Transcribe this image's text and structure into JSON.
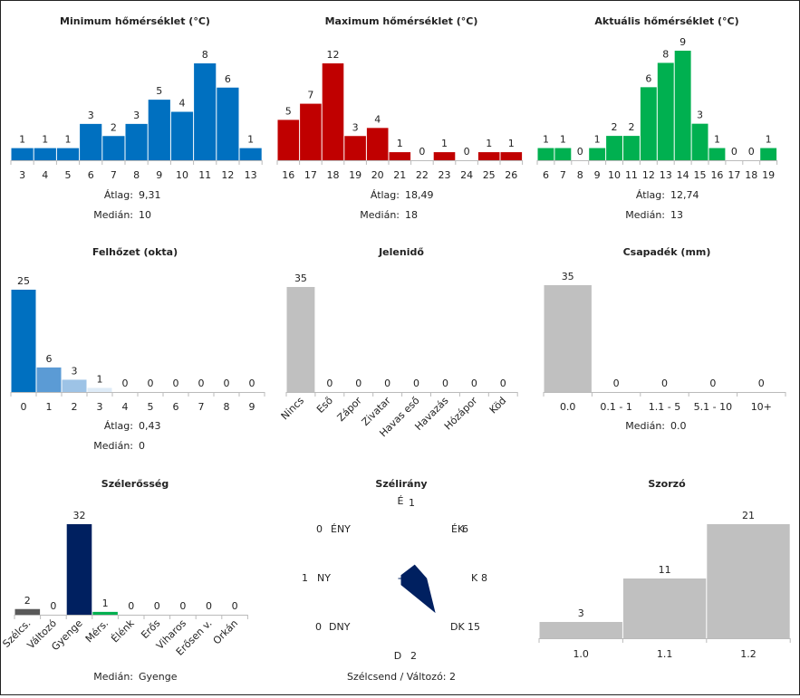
{
  "chart_data": [
    {
      "id": "min_temp",
      "type": "bar",
      "title": "Minimum hőmérséklet (°C)",
      "categories": [
        "3",
        "4",
        "5",
        "6",
        "7",
        "8",
        "9",
        "10",
        "11",
        "12",
        "13"
      ],
      "values": [
        1,
        1,
        1,
        3,
        2,
        3,
        5,
        4,
        8,
        6,
        1
      ],
      "colors": [
        "#0070c0"
      ],
      "ylim": [
        0,
        8
      ],
      "stats": [
        {
          "label": "Átlag:",
          "value": "9,31"
        },
        {
          "label": "Medián:",
          "value": "10"
        }
      ]
    },
    {
      "id": "max_temp",
      "type": "bar",
      "title": "Maximum hőmérséklet (°C)",
      "categories": [
        "16",
        "17",
        "18",
        "19",
        "20",
        "21",
        "22",
        "23",
        "24",
        "25",
        "26"
      ],
      "values": [
        5,
        7,
        12,
        3,
        4,
        1,
        0,
        1,
        0,
        1,
        1
      ],
      "colors": [
        "#c00000"
      ],
      "ylim": [
        0,
        12
      ],
      "stats": [
        {
          "label": "Átlag:",
          "value": "18,49"
        },
        {
          "label": "Medián:",
          "value": "18"
        }
      ]
    },
    {
      "id": "cur_temp",
      "type": "bar",
      "title": "Aktuális hőmérséklet (°C)",
      "categories": [
        "6",
        "7",
        "8",
        "9",
        "10",
        "11",
        "12",
        "13",
        "14",
        "15",
        "16",
        "17",
        "18",
        "19"
      ],
      "values": [
        1,
        1,
        0,
        1,
        2,
        2,
        6,
        8,
        9,
        3,
        1,
        0,
        0,
        1
      ],
      "colors": [
        "#00b050"
      ],
      "ylim": [
        0,
        9
      ],
      "stats": [
        {
          "label": "Átlag:",
          "value": "12,74"
        },
        {
          "label": "Medián:",
          "value": "13"
        }
      ]
    },
    {
      "id": "cloud",
      "type": "bar",
      "title": "Felhőzet (okta)",
      "categories": [
        "0",
        "1",
        "2",
        "3",
        "4",
        "5",
        "6",
        "7",
        "8",
        "9"
      ],
      "values": [
        25,
        6,
        3,
        1,
        0,
        0,
        0,
        0,
        0,
        0
      ],
      "colors": [
        "#0070c0",
        "#5b9bd5",
        "#9dc3e6",
        "#deebf7"
      ],
      "ylim": [
        0,
        25
      ],
      "stats": [
        {
          "label": "Átlag:",
          "value": "0,43"
        },
        {
          "label": "Medián:",
          "value": "0"
        }
      ]
    },
    {
      "id": "weather",
      "type": "bar",
      "title": "Jelenidő",
      "categories": [
        "Nincs",
        "Eső",
        "Zápor",
        "Zivatar",
        "Havas eső",
        "Havazás",
        "Hózápor",
        "Köd"
      ],
      "values": [
        35,
        0,
        0,
        0,
        0,
        0,
        0,
        0
      ],
      "colors": [
        "#c0c0c0"
      ],
      "ylim": [
        0,
        35
      ],
      "rotate": true,
      "stats": []
    },
    {
      "id": "precip",
      "type": "bar",
      "title": "Csapadék (mm)",
      "categories": [
        "0.0",
        "0.1 - 1",
        "1.1 - 5",
        "5.1 - 10",
        "10+"
      ],
      "values": [
        35,
        0,
        0,
        0,
        0
      ],
      "colors": [
        "#c0c0c0"
      ],
      "ylim": [
        0,
        35
      ],
      "stats": [
        {
          "label": "Medián:",
          "value": "0.0"
        }
      ]
    },
    {
      "id": "wind_speed",
      "type": "bar",
      "title": "Szélerősség",
      "categories": [
        "Szélcs.",
        "Változó",
        "Gyenge",
        "Mérs.",
        "Élénk",
        "Erős",
        "Viharos",
        "Erősen v.",
        "Orkán"
      ],
      "values": [
        2,
        0,
        32,
        1,
        0,
        0,
        0,
        0,
        0
      ],
      "colors": [
        "#595959",
        "#595959",
        "#002060",
        "#00b050",
        "#002060",
        "#002060",
        "#002060",
        "#002060",
        "#002060"
      ],
      "ylim": [
        0,
        32
      ],
      "rotate": true,
      "stats": [
        {
          "label": "Medián:",
          "value": "Gyenge"
        }
      ]
    },
    {
      "id": "wind_dir",
      "type": "radar",
      "title": "Szélirány",
      "directions": [
        {
          "label": "É",
          "value": 1
        },
        {
          "label": "ÉK",
          "value": 6
        },
        {
          "label": "K",
          "value": 8
        },
        {
          "label": "DK",
          "value": 15
        },
        {
          "label": "D",
          "value": 2
        },
        {
          "label": "DNY",
          "value": 0
        },
        {
          "label": "NY",
          "value": 1
        },
        {
          "label": "ÉNY",
          "value": 0
        }
      ],
      "rmax": 15,
      "color": "#002060",
      "footer": "Szélcsend / Változó: 2"
    },
    {
      "id": "multiplier",
      "type": "bar",
      "title": "Szorzó",
      "categories": [
        "1.0",
        "1.1",
        "1.2"
      ],
      "values": [
        3,
        11,
        21
      ],
      "colors": [
        "#c0c0c0"
      ],
      "ylim": [
        0,
        21
      ],
      "stats": []
    }
  ]
}
